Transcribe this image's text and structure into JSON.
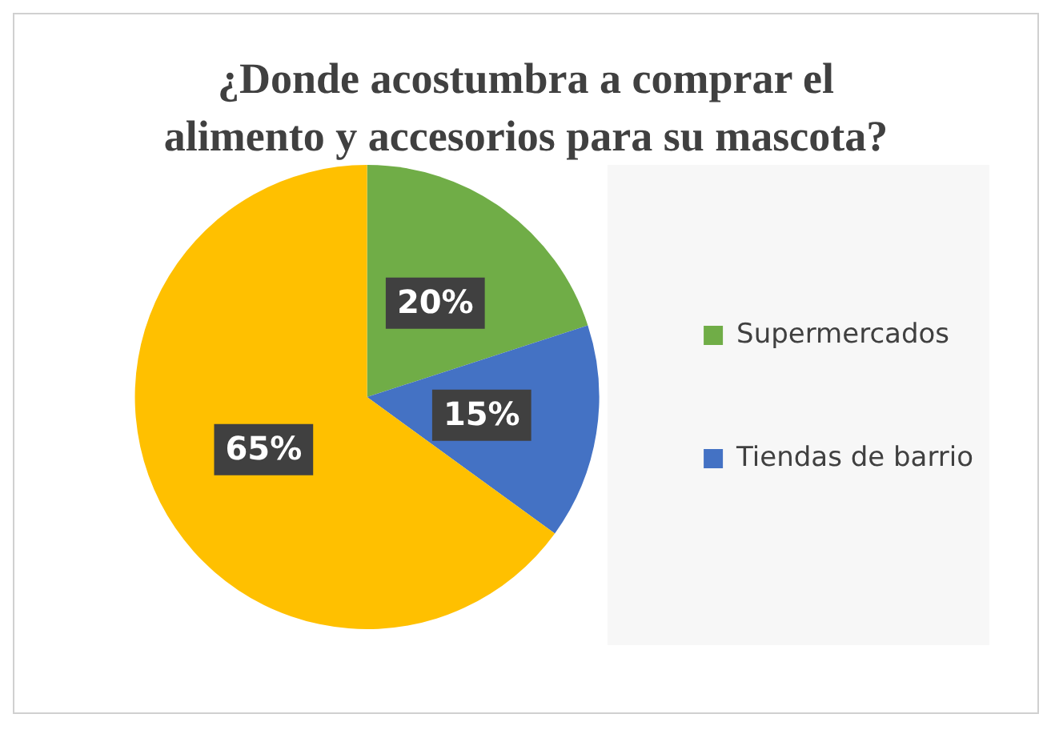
{
  "chart_data": {
    "type": "pie",
    "title": "¿Donde acostumbra a comprar el alimento y accesorios para su mascota?",
    "categories": [
      "Supermercados",
      "Tiendas de barrio",
      null
    ],
    "values": [
      20,
      15,
      65
    ],
    "colors": [
      "#70ad47",
      "#4472c4",
      "#ffc000"
    ],
    "value_labels": [
      "20%",
      "15%",
      "65%"
    ],
    "legend": "right"
  }
}
